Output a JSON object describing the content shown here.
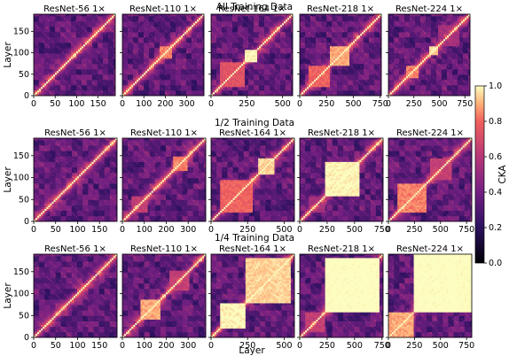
{
  "chart_data": {
    "type": "heatmap",
    "rows": [
      {
        "title": "All Training Data"
      },
      {
        "title": "1/2 Training Data"
      },
      {
        "title": "1/4 Training Data"
      }
    ],
    "models": [
      {
        "name": "ResNet-56 1×",
        "layers": 190,
        "xticks": [
          0,
          50,
          100,
          150
        ],
        "yticks": [
          0,
          50,
          100,
          150
        ]
      },
      {
        "name": "ResNet-110 1×",
        "layers": 380,
        "xticks": [
          0,
          100,
          200,
          300
        ],
        "yticks": []
      },
      {
        "name": "ResNet-164 1×",
        "layers": 570,
        "xticks": [
          0,
          250,
          500
        ],
        "yticks": []
      },
      {
        "name": "ResNet-218 1×",
        "layers": 760,
        "xticks": [
          0,
          250,
          500,
          750
        ],
        "yticks": []
      },
      {
        "name": "ResNet-224 1×",
        "layers": 800,
        "xticks": [
          0,
          250,
          500,
          750
        ],
        "yticks": []
      }
    ],
    "block_structure": [
      [
        [],
        [
          [
            0.45,
            0.6,
            0.8
          ]
        ],
        [
          [
            0.4,
            0.55,
            0.95
          ],
          [
            0.1,
            0.4,
            0.7
          ]
        ],
        [
          [
            0.35,
            0.6,
            0.85
          ],
          [
            0.1,
            0.35,
            0.75
          ]
        ],
        [
          [
            0.2,
            0.35,
            0.8
          ],
          [
            0.48,
            0.6,
            0.9
          ],
          [
            0.6,
            0.85,
            0.5
          ]
        ]
      ],
      [
        [],
        [
          [
            0.6,
            0.78,
            0.8
          ],
          [
            0.1,
            0.3,
            0.6
          ]
        ],
        [
          [
            0.1,
            0.5,
            0.75
          ],
          [
            0.55,
            0.75,
            0.9
          ]
        ],
        [
          [
            0.3,
            0.7,
            0.95
          ],
          [
            0.1,
            0.3,
            0.5
          ]
        ],
        [
          [
            0.1,
            0.45,
            0.8
          ],
          [
            0.5,
            0.75,
            0.6
          ]
        ]
      ],
      [
        [
          [
            0.25,
            0.4,
            0.5
          ]
        ],
        [
          [
            0.2,
            0.45,
            0.85
          ],
          [
            0.55,
            0.8,
            0.6
          ]
        ],
        [
          [
            0.1,
            0.4,
            0.95
          ],
          [
            0.4,
            0.95,
            0.9
          ]
        ],
        [
          [
            0.3,
            0.95,
            0.98
          ],
          [
            0.05,
            0.3,
            0.6
          ]
        ],
        [
          [
            0.3,
            1.0,
            0.98
          ],
          [
            0.0,
            0.3,
            0.85
          ]
        ]
      ]
    ],
    "xlabel": "Layer",
    "ylabel": "Layer",
    "colorbar": {
      "label": "CKA",
      "range": [
        0.0,
        1.0
      ],
      "ticks": [
        "0.0",
        "0.2",
        "0.4",
        "0.6",
        "0.8",
        "1.0"
      ]
    },
    "grid": false
  }
}
